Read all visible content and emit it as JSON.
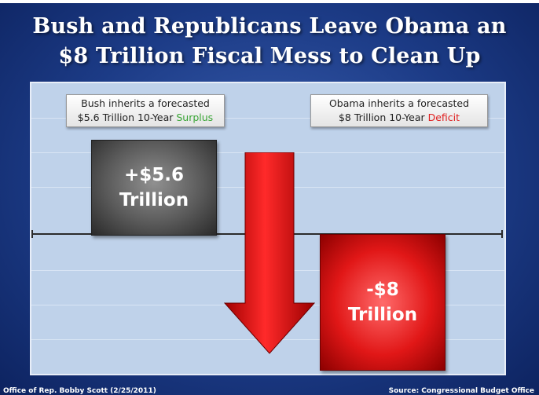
{
  "title": {
    "line1": "Bush and Republicans Leave Obama an",
    "line2": "$8 Trillion Fiscal Mess to Clean Up"
  },
  "callouts": {
    "bush": {
      "line1": "Bush inherits a forecasted",
      "line2_prefix": "$5.6 Trillion 10-Year ",
      "line2_highlight": "Surplus"
    },
    "obama": {
      "line1": "Obama inherits a forecasted",
      "line2_prefix": "$8 Trillion 10-Year ",
      "line2_highlight": "Deficit"
    }
  },
  "footer": {
    "left": "Office of Rep. Bobby Scott (2/25/2011)",
    "right": "Source:  Congressional Budget Office"
  },
  "colors": {
    "background": "#1c3b86",
    "surplus_text": "#3aa636",
    "deficit_text": "#e02020",
    "surplus_bar": "#5a5a5a",
    "deficit_bar": "#e11717",
    "arrow": "#e00000"
  },
  "chart_data": {
    "type": "bar",
    "title": "",
    "xlabel": "",
    "ylabel": "",
    "categories": [
      "Bush",
      "Obama"
    ],
    "values": [
      5.6,
      -8
    ],
    "value_labels": [
      {
        "line1": "+$5.6",
        "line2": "Trillion"
      },
      {
        "line1": "-$8",
        "line2": "Trillion"
      }
    ],
    "ylim": [
      -8,
      5.6
    ],
    "grid": true,
    "baseline": 0,
    "arrow": "down, between bars"
  }
}
